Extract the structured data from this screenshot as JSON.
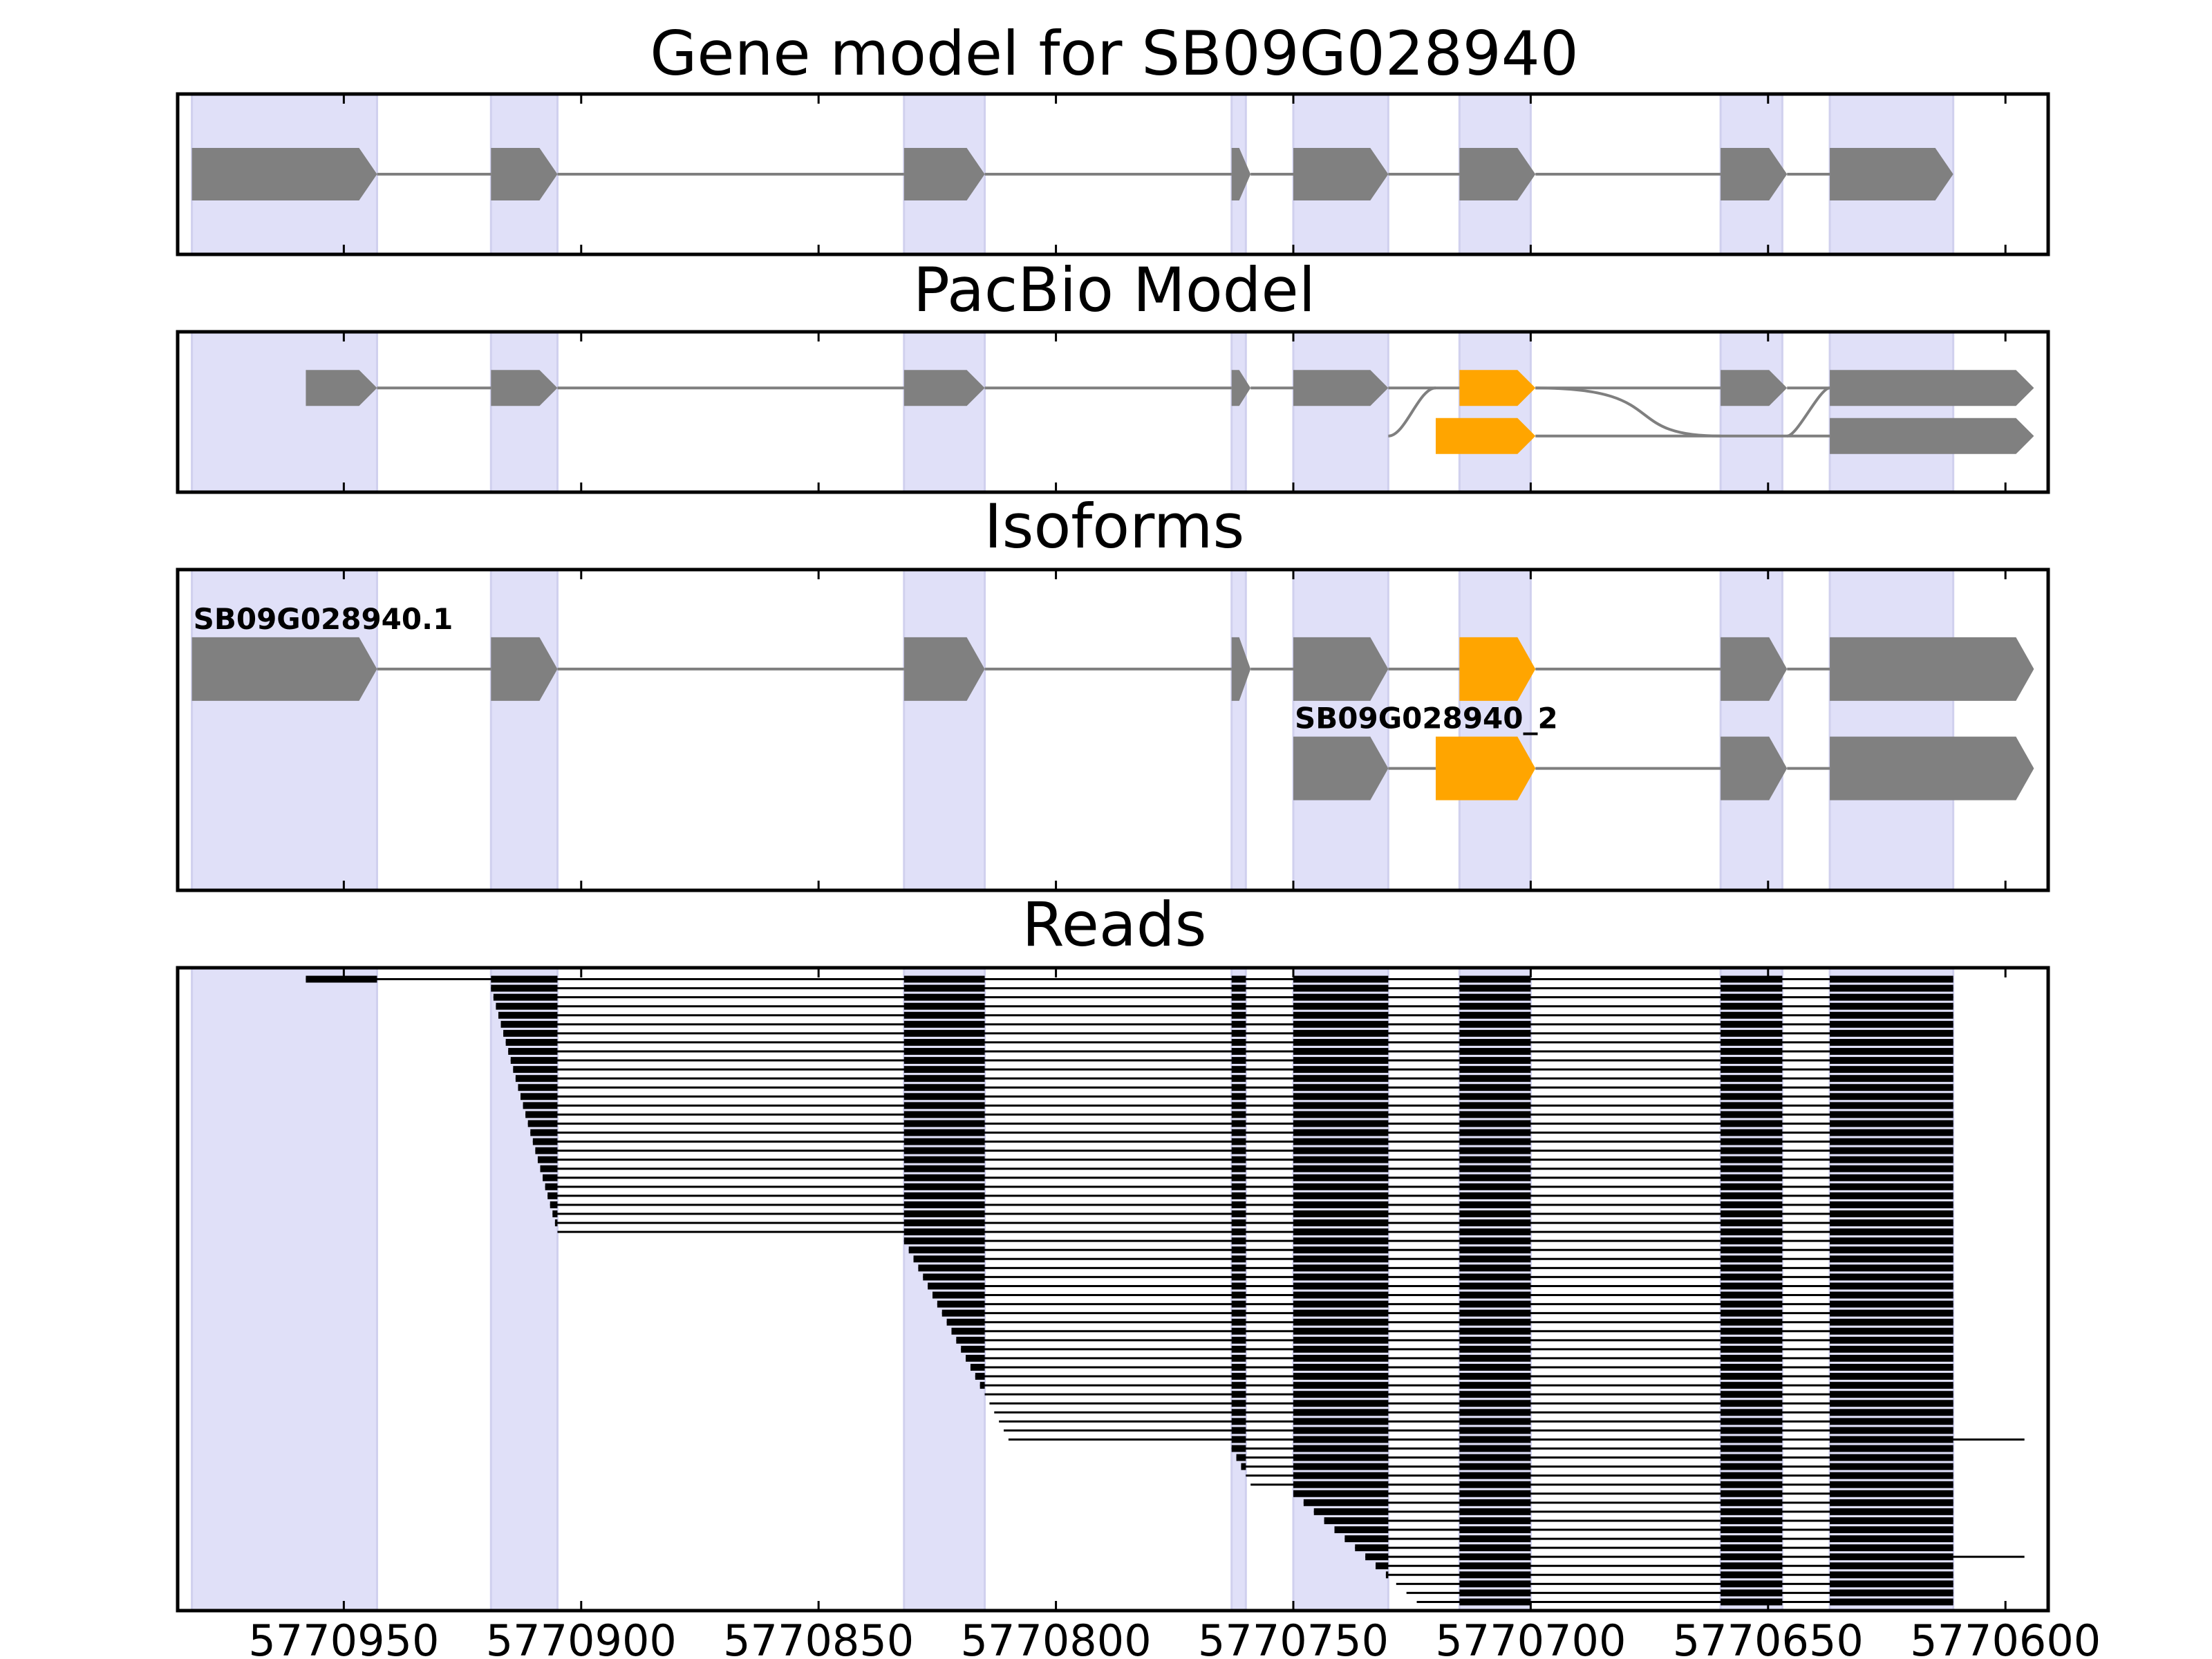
{
  "chart_data": {
    "type": "gene-structure",
    "x_tick_labels": [
      "5770950",
      "5770900",
      "5770850",
      "5770800",
      "5770750",
      "5770700",
      "5770650",
      "5770600"
    ],
    "x_ticks": [
      5770950,
      5770900,
      5770850,
      5770800,
      5770750,
      5770700,
      5770650,
      5770600
    ],
    "xlim": [
      5770985,
      5770591
    ],
    "highlight_color": "#e0e0f8",
    "exon_color": "#808080",
    "alt_exon_color": "#ffa500",
    "read_color": "#000000",
    "exon_regions": [
      [
        5770982,
        5770943
      ],
      [
        5770919,
        5770905
      ],
      [
        5770832,
        5770815
      ],
      [
        5770763,
        5770760
      ],
      [
        5770750,
        5770730
      ],
      [
        5770715,
        5770700
      ],
      [
        5770660,
        5770647
      ],
      [
        5770637,
        5770611
      ]
    ],
    "panels": [
      {
        "title": "Gene model for SB09G028940",
        "tracks": [
          {
            "label": "",
            "row": 0.5,
            "exons": [
              [
                5770982,
                5770943,
                "gray"
              ],
              [
                5770919,
                5770905,
                "gray"
              ],
              [
                5770832,
                5770815,
                "gray"
              ],
              [
                5770763,
                5770759,
                "gray"
              ],
              [
                5770750,
                5770730,
                "gray"
              ],
              [
                5770715,
                5770699,
                "gray"
              ],
              [
                5770660,
                5770646,
                "gray"
              ],
              [
                5770637,
                5770611,
                "gray"
              ]
            ]
          }
        ]
      },
      {
        "title": "PacBio Model",
        "tracks": [
          {
            "label": "",
            "row": 0.65,
            "exons": [
              [
                5770958,
                5770943,
                "gray"
              ],
              [
                5770919,
                5770905,
                "gray"
              ],
              [
                5770832,
                5770815,
                "gray"
              ],
              [
                5770763,
                5770759,
                "gray"
              ],
              [
                5770750,
                5770730,
                "gray"
              ],
              [
                5770715,
                5770699,
                "orange"
              ],
              [
                5770660,
                5770646,
                "gray"
              ],
              [
                5770637,
                5770594,
                "gray"
              ]
            ]
          },
          {
            "label": "",
            "row": 0.35,
            "exons": [
              [
                5770720,
                5770699,
                "orange"
              ],
              [
                5770637,
                5770594,
                "gray"
              ]
            ]
          }
        ]
      },
      {
        "title": "Isoforms",
        "tracks": [
          {
            "label": "SB09G028940.1",
            "row": 0.69,
            "exons": [
              [
                5770982,
                5770943,
                "gray"
              ],
              [
                5770919,
                5770905,
                "gray"
              ],
              [
                5770832,
                5770815,
                "gray"
              ],
              [
                5770763,
                5770759,
                "gray"
              ],
              [
                5770750,
                5770730,
                "gray"
              ],
              [
                5770715,
                5770699,
                "orange"
              ],
              [
                5770660,
                5770646,
                "gray"
              ],
              [
                5770637,
                5770594,
                "gray"
              ]
            ]
          },
          {
            "label": "SB09G028940_2",
            "row": 0.38,
            "exons": [
              [
                5770750,
                5770730,
                "gray"
              ],
              [
                5770720,
                5770699,
                "orange"
              ],
              [
                5770660,
                5770646,
                "gray"
              ],
              [
                5770637,
                5770594,
                "gray"
              ]
            ]
          }
        ]
      },
      {
        "title": "Reads",
        "read_count": 70,
        "read_groups": [
          {
            "from": 0,
            "to": 0,
            "start": 5770958,
            "end": 5770611
          },
          {
            "from": 1,
            "to": 28,
            "start_from": 5770919,
            "start_to": 5770905,
            "end": 5770611
          },
          {
            "from": 29,
            "to": 51,
            "start_from": 5770832,
            "start_to": 5770810,
            "end": 5770611
          },
          {
            "from": 52,
            "to": 56,
            "start_from": 5770763,
            "start_to": 5770759,
            "end": 5770611
          },
          {
            "from": 57,
            "to": 69,
            "start_from": 5770750,
            "start_to": 5770724,
            "end": 5770611
          }
        ],
        "long_read_rows": [
          51,
          64
        ],
        "long_read_end": 5770596
      }
    ]
  }
}
